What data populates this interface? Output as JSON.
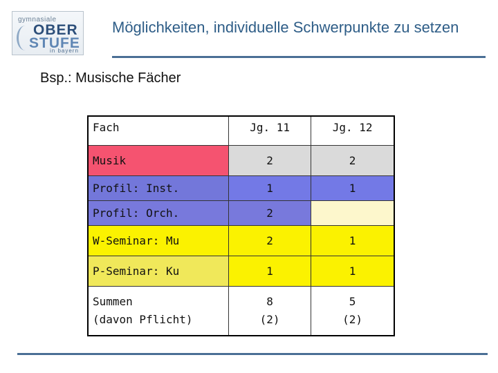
{
  "logo": {
    "line1": "gymnasiale",
    "line2": "OBER",
    "line3": "STUFE",
    "line4": "in bayern"
  },
  "title": "Möglichkeiten, individuelle Schwerpunkte zu setzen",
  "subtitle": "Bsp.: Musische Fächer",
  "table": {
    "headers": [
      "Fach",
      "Jg. 11",
      "Jg. 12"
    ],
    "rows": [
      {
        "fach": "Musik",
        "jg11": "2",
        "jg12": "2"
      },
      {
        "fach": "Profil: Inst.",
        "jg11": "1",
        "jg12": "1"
      },
      {
        "fach": "Profil: Orch.",
        "jg11": "2",
        "jg12": ""
      },
      {
        "fach": "W-Seminar: Mu",
        "jg11": "2",
        "jg12": "1"
      },
      {
        "fach": "P-Seminar: Ku",
        "jg11": "1",
        "jg12": "1"
      },
      {
        "fach_line1": "Summen",
        "fach_line2": "(davon Pflicht)",
        "jg11_line1": "8",
        "jg11_line2": "(2)",
        "jg12_line1": "5",
        "jg12_line2": "(2)"
      }
    ]
  },
  "colors": {
    "accent": "#2e5d87",
    "rule": "#4a6f95",
    "musik": "#f55370",
    "profil": "#7379e6",
    "seminar": "#fbf200",
    "empty_cell": "#fdf7cc",
    "grey": "#dadada"
  }
}
